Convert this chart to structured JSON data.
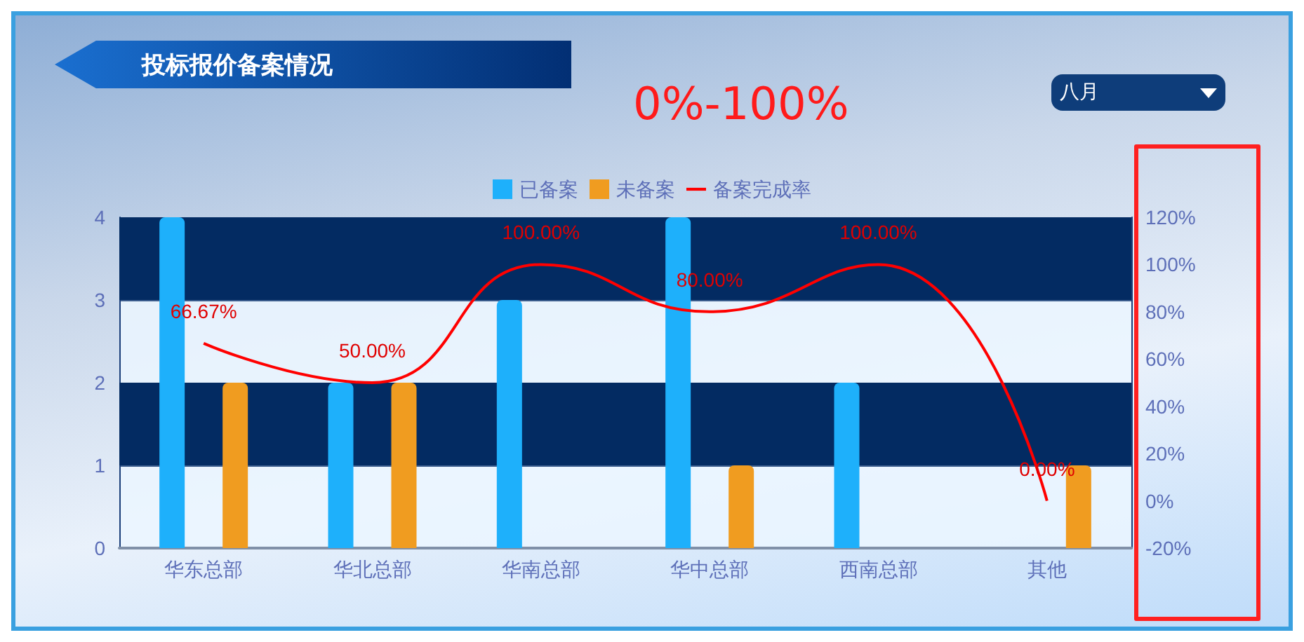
{
  "chart_data": {
    "type": "bar",
    "title": "投标报价备案情况",
    "annotations": [
      "0%-100%",
      "八月"
    ],
    "categories": [
      "华东总部",
      "华北总部",
      "华南总部",
      "华中总部",
      "西南总部",
      "其他"
    ],
    "series": [
      {
        "name": "已备案",
        "color": "#1eb0fb",
        "values": [
          4,
          2,
          3,
          4,
          2,
          0
        ]
      },
      {
        "name": "未备案",
        "color": "#f09c20",
        "values": [
          2,
          2,
          0,
          1,
          0,
          1
        ]
      },
      {
        "name": "备案完成率",
        "type": "line",
        "axis": "y2",
        "color": "#ff0000",
        "values": [
          66.67,
          50,
          100,
          80,
          100,
          0
        ],
        "value_labels": [
          "66.67%",
          "50.00%",
          "100.00%",
          "80.00%",
          "100.00%",
          "0.00%"
        ]
      }
    ],
    "ylim": [
      0,
      4
    ],
    "yticks": [
      0,
      1,
      2,
      3,
      4
    ],
    "y2lim": [
      -20,
      120
    ],
    "y2ticks": [
      {
        "value": -20,
        "label": "-20%"
      },
      {
        "value": 0,
        "label": "0%"
      },
      {
        "value": 20,
        "label": "20%"
      },
      {
        "value": 40,
        "label": "40%"
      },
      {
        "value": 60,
        "label": "60%"
      },
      {
        "value": 80,
        "label": "80%"
      },
      {
        "value": 100,
        "label": "100%"
      },
      {
        "value": 120,
        "label": "120%"
      }
    ],
    "bands": [
      {
        "axis": "y",
        "from": 1,
        "to": 2,
        "color": "#032b62"
      },
      {
        "axis": "y",
        "from": 3,
        "to": 4,
        "color": "#032b62"
      }
    ],
    "grid": "y",
    "legend": "top",
    "marker": "none"
  }
}
